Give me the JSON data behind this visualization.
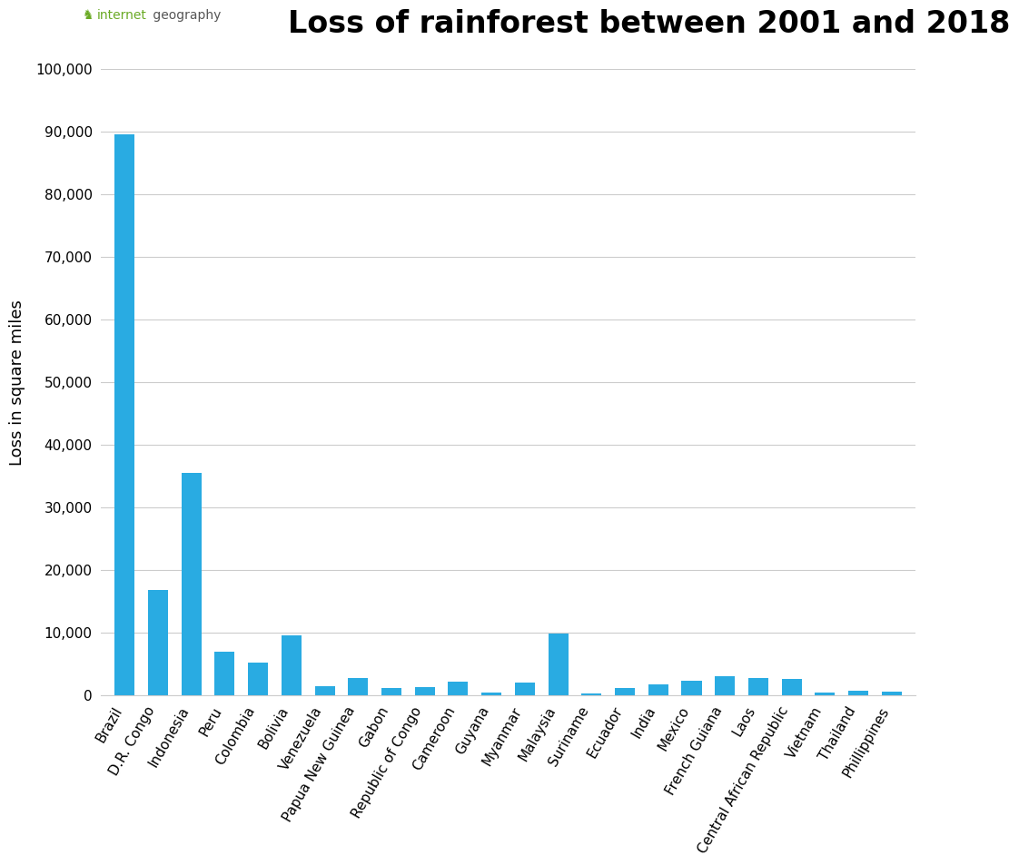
{
  "title": "Loss of rainforest between 2001 and 2018",
  "ylabel": "Loss in square miles",
  "bar_color": "#29abe2",
  "background_color": "#ffffff",
  "grid_color": "#cccccc",
  "categories": [
    "Brazil",
    "D.R. Congo",
    "Indonesia",
    "Peru",
    "Colombia",
    "Bolivia",
    "Venezuela",
    "Papua New Guinea",
    "Gabon",
    "Republic of Congo",
    "Cameroon",
    "Guyana",
    "Myanmar",
    "Malaysia",
    "Suriname",
    "Ecuador",
    "India",
    "Mexico",
    "French Guiana",
    "Laos",
    "Central African Republic",
    "Vietnam",
    "Thailand",
    "Phillippines"
  ],
  "values": [
    89500,
    16800,
    35500,
    7000,
    5200,
    9500,
    1500,
    2700,
    1100,
    1300,
    2200,
    500,
    2100,
    9800,
    300,
    1200,
    1800,
    2300,
    3000,
    2800,
    2600,
    400,
    700,
    600
  ],
  "ylim": [
    0,
    100000
  ],
  "yticks": [
    0,
    10000,
    20000,
    30000,
    40000,
    50000,
    60000,
    70000,
    80000,
    90000,
    100000
  ],
  "logo_text_internet": "internet",
  "logo_text_geography": "geography",
  "logo_color_internet": "#6aaa25",
  "logo_color_geography": "#555555",
  "logo_icon": "♞",
  "title_fontsize": 24,
  "axis_label_fontsize": 13,
  "tick_fontsize": 11,
  "logo_fontsize": 10
}
